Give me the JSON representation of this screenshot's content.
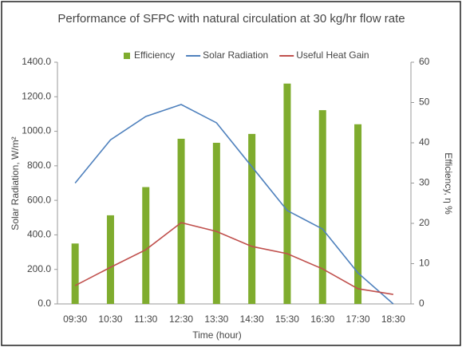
{
  "chart_data": {
    "type": "bar_line",
    "title": "Performance of SFPC with natural circulation at 30 kg/hr flow rate",
    "x_label": "Time (hour)",
    "y_label": "Solar Radiation, W/m²",
    "y2_label": "Efficiency, η %",
    "categories": [
      "09:30",
      "10:30",
      "11:30",
      "12:30",
      "13:30",
      "14:30",
      "15:30",
      "16:30",
      "17:30",
      "18:30"
    ],
    "series": [
      {
        "name": "Efficiency",
        "type": "bar",
        "axis": "y2",
        "color": "#7fac2e",
        "values": [
          15,
          22,
          29,
          41,
          40,
          42.2,
          54.7,
          48.1,
          44.6,
          null
        ]
      },
      {
        "name": "Solar Radiation",
        "type": "line",
        "color": "#4f81bd",
        "values": [
          700,
          950,
          1086,
          1155,
          1049,
          795,
          541,
          434,
          180,
          0
        ]
      },
      {
        "name": "Useful Heat Gain",
        "type": "line",
        "color": "#c0504d",
        "values": [
          106,
          212,
          314,
          471,
          420,
          333,
          291,
          203,
          88,
          55
        ]
      }
    ],
    "ylim": [
      0,
      1400
    ],
    "yticks": [
      {
        "value": 0,
        "label": "0.0"
      },
      {
        "value": 200,
        "label": "200.0"
      },
      {
        "value": 400,
        "label": "400.0"
      },
      {
        "value": 600,
        "label": "600.0"
      },
      {
        "value": 800,
        "label": "800.0"
      },
      {
        "value": 1000,
        "label": "1000.0"
      },
      {
        "value": 1200,
        "label": "1200.0"
      },
      {
        "value": 1400,
        "label": "1400.0"
      }
    ],
    "y2lim": [
      0,
      60
    ],
    "y2ticks": [
      0,
      10,
      20,
      30,
      40,
      50,
      60
    ],
    "legend": "top"
  }
}
